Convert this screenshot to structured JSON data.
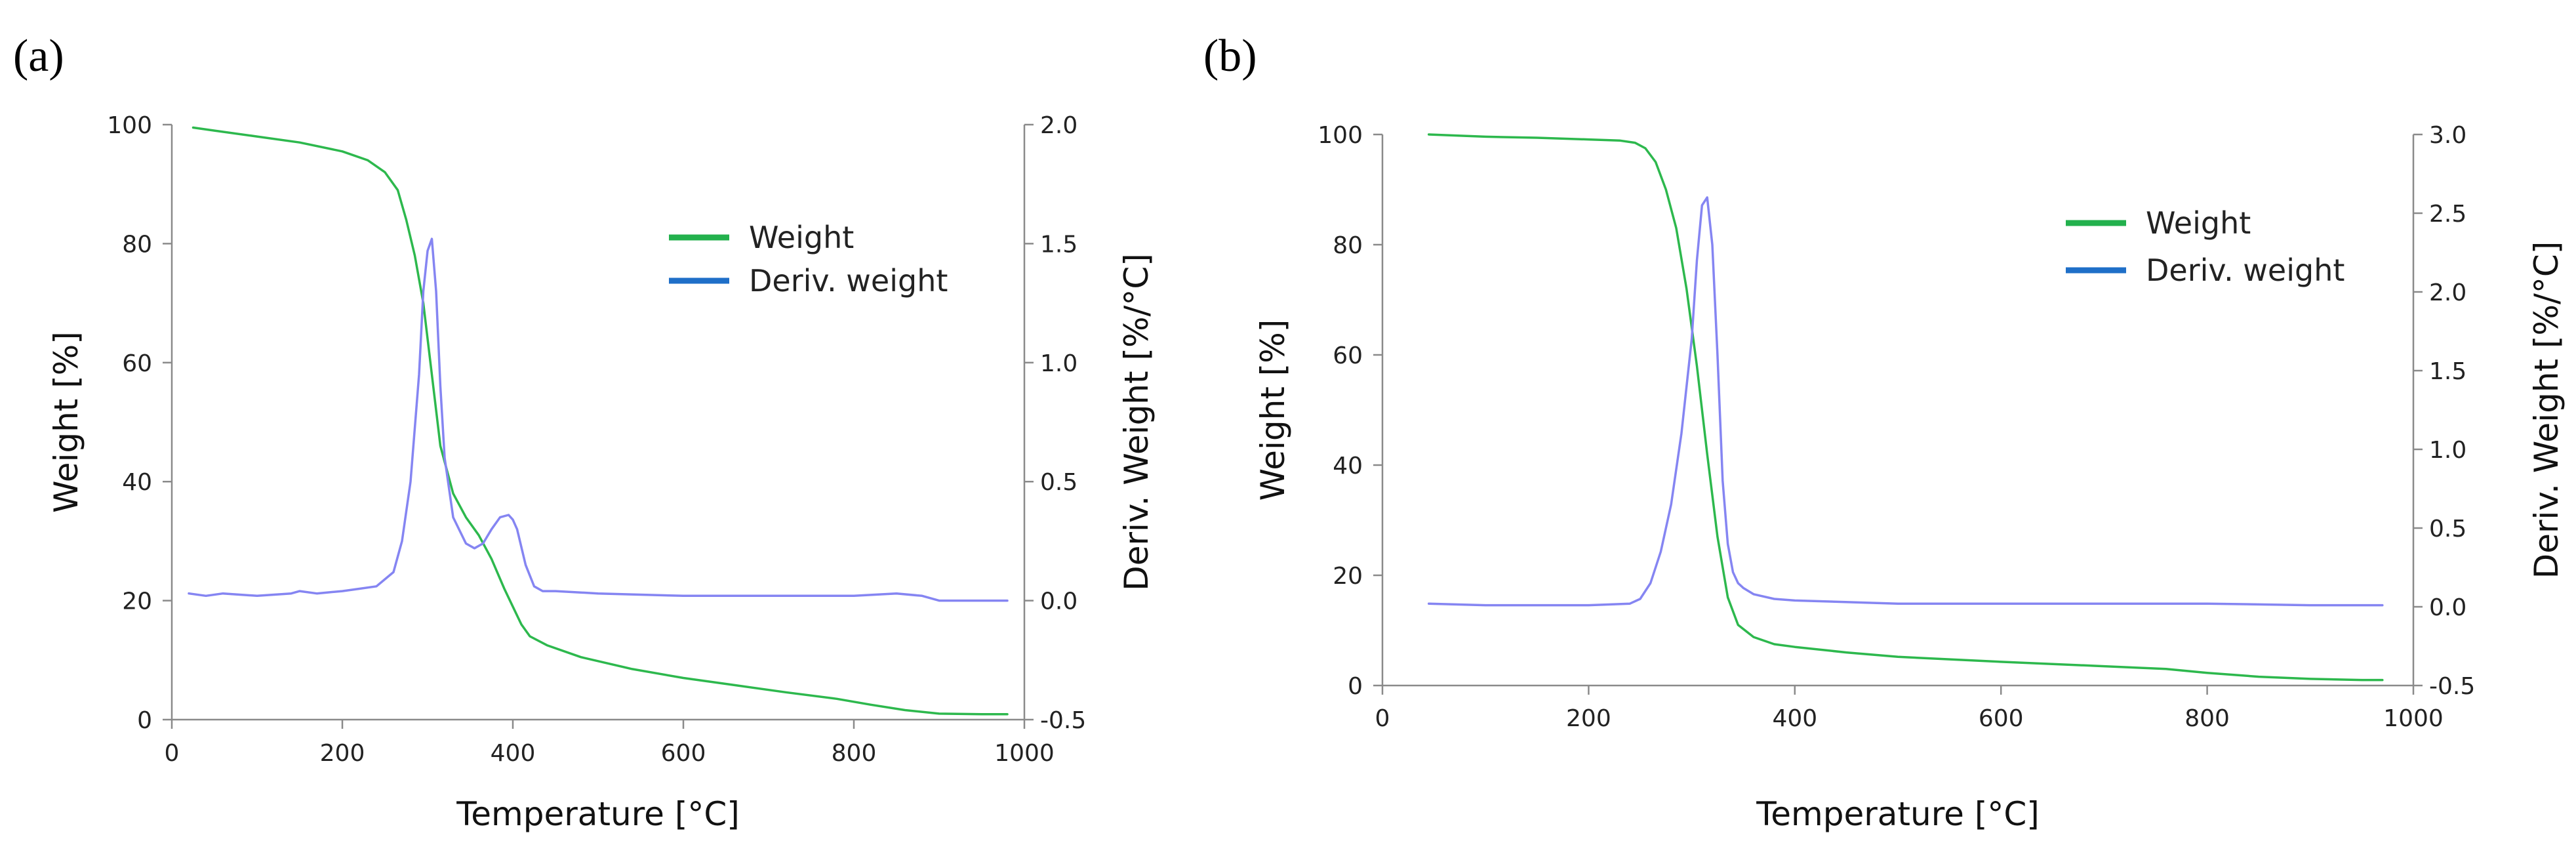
{
  "chart_data": [
    {
      "type": "line",
      "panel_label": "(a)",
      "xlabel": "Temperature [°C]",
      "ylabel": "Weight [%]",
      "y2label": "Deriv. Weight [%/°C]",
      "xlim": [
        0,
        1000
      ],
      "xticks": [
        0,
        200,
        400,
        600,
        800,
        1000
      ],
      "ylim": [
        0,
        100
      ],
      "yticks": [
        0,
        20,
        40,
        60,
        80,
        100
      ],
      "y2lim": [
        -0.5,
        2.0
      ],
      "y2ticks": [
        "-0.5",
        "0.0",
        "0.5",
        "1.0",
        "1.5",
        "2.0"
      ],
      "grid": false,
      "legend_position": "upper-right",
      "series": [
        {
          "name": "Weight",
          "axis": "left",
          "color": "#2db84d",
          "x": [
            25,
            50,
            100,
            150,
            200,
            230,
            250,
            265,
            275,
            285,
            295,
            305,
            315,
            330,
            345,
            360,
            375,
            390,
            400,
            410,
            420,
            440,
            480,
            540,
            600,
            660,
            720,
            780,
            820,
            860,
            900,
            950,
            980
          ],
          "y": [
            99.5,
            99,
            98,
            97,
            95.5,
            94,
            92,
            89,
            84,
            78,
            70,
            58,
            46,
            38,
            34,
            31,
            27,
            22,
            19,
            16,
            14,
            12.5,
            10.5,
            8.5,
            7,
            5.8,
            4.6,
            3.5,
            2.5,
            1.6,
            1,
            0.9,
            0.9
          ]
        },
        {
          "name": "Deriv. weight",
          "axis": "right",
          "color": "#8585f2",
          "x": [
            20,
            40,
            60,
            100,
            140,
            150,
            170,
            200,
            220,
            240,
            260,
            270,
            280,
            290,
            295,
            300,
            305,
            310,
            315,
            320,
            330,
            345,
            355,
            365,
            375,
            385,
            395,
            400,
            405,
            415,
            425,
            435,
            450,
            500,
            600,
            700,
            800,
            850,
            880,
            900,
            950,
            980
          ],
          "y": [
            0.03,
            0.02,
            0.03,
            0.02,
            0.03,
            0.04,
            0.03,
            0.04,
            0.05,
            0.06,
            0.12,
            0.25,
            0.5,
            0.95,
            1.3,
            1.47,
            1.52,
            1.3,
            0.9,
            0.6,
            0.35,
            0.24,
            0.22,
            0.24,
            0.3,
            0.35,
            0.36,
            0.34,
            0.3,
            0.15,
            0.06,
            0.04,
            0.04,
            0.03,
            0.02,
            0.02,
            0.02,
            0.03,
            0.02,
            0.0,
            0.0,
            0.0
          ]
        }
      ]
    },
    {
      "type": "line",
      "panel_label": "(b)",
      "xlabel": "Temperature [°C]",
      "ylabel": "Weight [%]",
      "y2label": "Deriv. Weight [%/°C]",
      "xlim": [
        0,
        1000
      ],
      "xticks": [
        0,
        200,
        400,
        600,
        800,
        1000
      ],
      "ylim": [
        0,
        100
      ],
      "yticks": [
        0,
        20,
        40,
        60,
        80,
        100
      ],
      "y2lim": [
        -0.5,
        3.0
      ],
      "y2ticks": [
        "-0.5",
        "0.0",
        "0.5",
        "1.0",
        "1.5",
        "2.0",
        "2.5",
        "3.0"
      ],
      "grid": false,
      "legend_position": "upper-right",
      "series": [
        {
          "name": "Weight",
          "axis": "left",
          "color": "#2db84d",
          "x": [
            45,
            100,
            150,
            200,
            230,
            245,
            255,
            265,
            275,
            285,
            295,
            305,
            315,
            325,
            335,
            345,
            360,
            380,
            400,
            450,
            500,
            600,
            700,
            760,
            800,
            850,
            900,
            950,
            970
          ],
          "y": [
            100,
            99.6,
            99.4,
            99.1,
            98.9,
            98.5,
            97.5,
            95,
            90,
            83,
            72,
            58,
            42,
            27,
            16,
            11,
            8.8,
            7.5,
            7,
            6,
            5.2,
            4.3,
            3.5,
            3,
            2.3,
            1.6,
            1.2,
            1,
            1
          ]
        },
        {
          "name": "Deriv. weight",
          "axis": "right",
          "color": "#8585f2",
          "x": [
            45,
            100,
            200,
            240,
            250,
            260,
            270,
            280,
            290,
            300,
            305,
            310,
            315,
            320,
            325,
            330,
            335,
            340,
            345,
            350,
            360,
            380,
            400,
            500,
            600,
            700,
            800,
            900,
            970
          ],
          "y": [
            0.02,
            0.01,
            0.01,
            0.02,
            0.05,
            0.15,
            0.35,
            0.65,
            1.1,
            1.7,
            2.2,
            2.55,
            2.6,
            2.3,
            1.6,
            0.8,
            0.4,
            0.22,
            0.15,
            0.12,
            0.08,
            0.05,
            0.04,
            0.02,
            0.02,
            0.02,
            0.02,
            0.01,
            0.01
          ]
        }
      ]
    }
  ]
}
